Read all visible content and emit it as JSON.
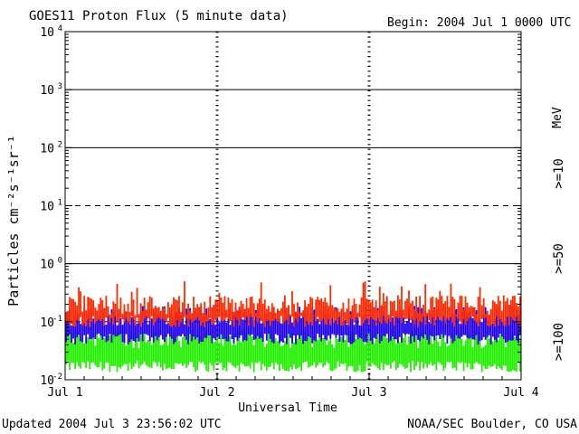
{
  "chart_data": {
    "type": "line",
    "title": "GOES11 Proton Flux (5 minute data)",
    "begin_label": "Begin: 2004 Jul 1 0000 UTC",
    "xlabel": "Universal Time",
    "ylabel": "Particles cm⁻²s⁻¹sr⁻¹",
    "yscale": "log",
    "ylim": [
      0.01,
      10000
    ],
    "y_ticks": [
      {
        "value": 0.01,
        "base": "10",
        "exp": "-2"
      },
      {
        "value": 0.1,
        "base": "10",
        "exp": "-1"
      },
      {
        "value": 1,
        "base": "10",
        "exp": "0"
      },
      {
        "value": 10,
        "base": "10",
        "exp": "1"
      },
      {
        "value": 100,
        "base": "10",
        "exp": "2"
      },
      {
        "value": 1000,
        "base": "10",
        "exp": "3"
      },
      {
        "value": 10000,
        "base": "10",
        "exp": "4"
      }
    ],
    "x_range_days": [
      0,
      3
    ],
    "x_tick_labels": [
      {
        "day": 0,
        "label": "Jul 1"
      },
      {
        "day": 1,
        "label": "Jul 2"
      },
      {
        "day": 2,
        "label": "Jul 3"
      },
      {
        "day": 3,
        "label": "Jul 4"
      }
    ],
    "threshold_lines": [
      {
        "value": 1000,
        "style": "solid"
      },
      {
        "value": 100,
        "style": "solid"
      },
      {
        "value": 10,
        "style": "dashed"
      },
      {
        "value": 1,
        "style": "solid"
      },
      {
        "value": 0.1,
        "style": "dashed"
      }
    ],
    "series": [
      {
        "name": ">=10",
        "color": "#ff2a00",
        "typical": 0.13,
        "low": 0.09,
        "high": 0.5
      },
      {
        "name": ">=50",
        "color": "#2200ee",
        "typical": 0.085,
        "low": 0.045,
        "high": 0.2
      },
      {
        "name": ">=100",
        "color": "#22ee00",
        "typical": 0.035,
        "low": 0.015,
        "high": 0.09
      }
    ],
    "legend_unit": "MeV"
  },
  "footer": {
    "updated": "Updated 2004 Jul  3 23:56:02 UTC",
    "source": "NOAA/SEC Boulder, CO USA"
  },
  "colors": {
    "gt10": "#ff2a00",
    "gt50": "#2200ee",
    "gt100": "#22ee00"
  }
}
